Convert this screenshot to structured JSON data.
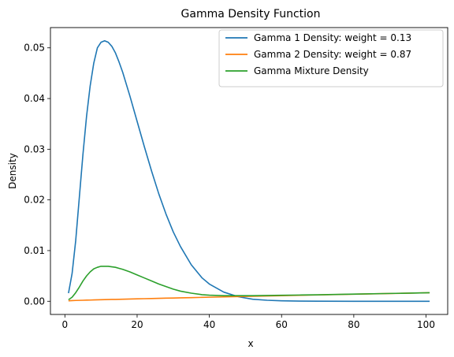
{
  "chart_data": {
    "type": "line",
    "title": "Gamma Density Function",
    "xlabel": "x",
    "ylabel": "Density",
    "xlim": [
      -4,
      106
    ],
    "ylim": [
      -0.0026,
      0.054
    ],
    "xticks": [
      0,
      20,
      40,
      60,
      80,
      100
    ],
    "xtick_labels": [
      "0",
      "20",
      "40",
      "60",
      "80",
      "100"
    ],
    "yticks": [
      0.0,
      0.01,
      0.02,
      0.03,
      0.04,
      0.05
    ],
    "ytick_labels": [
      "0.00",
      "0.01",
      "0.02",
      "0.03",
      "0.04",
      "0.05"
    ],
    "grid": false,
    "legend_position": "top-right",
    "x": [
      1,
      2,
      3,
      4,
      5,
      6,
      7,
      8,
      9,
      10,
      11,
      12,
      13,
      14,
      15,
      16,
      18,
      20,
      22,
      24,
      26,
      28,
      30,
      32,
      35,
      38,
      40,
      44,
      48,
      52,
      56,
      60,
      65,
      70,
      80,
      90,
      101
    ],
    "series": [
      {
        "name": "Gamma 1 Density: weight = 0.13",
        "color": "#1f77b4",
        "values": [
          0.0016,
          0.0055,
          0.012,
          0.0205,
          0.029,
          0.0365,
          0.0425,
          0.047,
          0.05,
          0.0511,
          0.0514,
          0.0511,
          0.0503,
          0.049,
          0.0472,
          0.0452,
          0.0405,
          0.0355,
          0.0305,
          0.0257,
          0.0212,
          0.0172,
          0.0137,
          0.0108,
          0.0072,
          0.0046,
          0.0034,
          0.0018,
          0.0009,
          0.0004,
          0.0002,
          0.0001,
          4e-05,
          1e-05,
          0.0,
          0.0,
          0.0
        ]
      },
      {
        "name": "Gamma 2 Density: weight = 0.87",
        "color": "#ff7f0e",
        "values": [
          0.0001,
          0.00013,
          0.00016,
          0.00018,
          0.0002,
          0.00022,
          0.00024,
          0.00026,
          0.00028,
          0.0003,
          0.00032,
          0.00034,
          0.00036,
          0.00037,
          0.00039,
          0.00041,
          0.00044,
          0.00048,
          0.00051,
          0.00054,
          0.00058,
          0.00061,
          0.00064,
          0.00067,
          0.00072,
          0.00077,
          0.0008,
          0.00086,
          0.00093,
          0.00099,
          0.00105,
          0.00111,
          0.00118,
          0.00125,
          0.00139,
          0.00153,
          0.00168
        ]
      },
      {
        "name": "Gamma Mixture Density",
        "color": "#2ca02c",
        "values": [
          0.0003,
          0.0008,
          0.0017,
          0.0028,
          0.004,
          0.005,
          0.0058,
          0.0064,
          0.0067,
          0.0069,
          0.0069,
          0.0069,
          0.0068,
          0.0067,
          0.0065,
          0.0063,
          0.0058,
          0.0052,
          0.0046,
          0.004,
          0.0034,
          0.0029,
          0.0024,
          0.002,
          0.0016,
          0.0013,
          0.0012,
          0.0011,
          0.0011,
          0.00111,
          0.00114,
          0.00118,
          0.00123,
          0.00128,
          0.00141,
          0.00154,
          0.00168
        ]
      }
    ]
  }
}
